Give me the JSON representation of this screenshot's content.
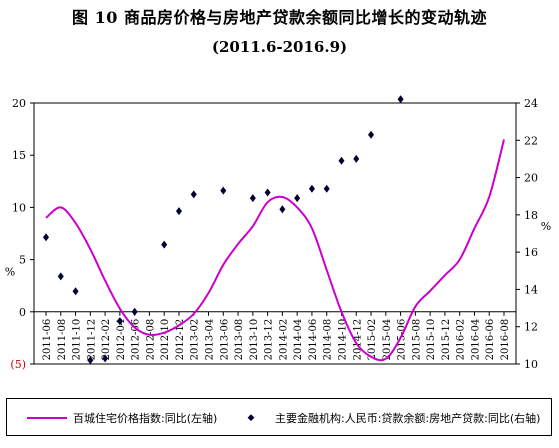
{
  "title": "图 10    商品房价格与房地产贷款余额同比增长的变动轨迹",
  "subtitle": "(2011.6-2016.9)",
  "chart_data": {
    "type": "line",
    "title": "图 10    商品房价格与房地产贷款余额同比增长的变动轨迹",
    "subtitle": "(2011.6-2016.9)",
    "categories": [
      "2011-06",
      "2011-08",
      "2011-10",
      "2011-12",
      "2012-02",
      "2012-04",
      "2012-06",
      "2012-08",
      "2012-10",
      "2012-12",
      "2013-02",
      "2013-04",
      "2013-06",
      "2013-08",
      "2013-10",
      "2013-12",
      "2014-02",
      "2014-04",
      "2014-06",
      "2014-08",
      "2014-10",
      "2014-12",
      "2015-02",
      "2015-04",
      "2015-06",
      "2015-08",
      "2015-10",
      "2015-12",
      "2016-02",
      "2016-04",
      "2016-06",
      "2016-08"
    ],
    "left_axis": {
      "label": "%",
      "ylim": [
        -5,
        20
      ],
      "ticks": [
        -5,
        0,
        5,
        10,
        15,
        20
      ],
      "tick_labels": [
        "(5)",
        "0",
        "5",
        "10",
        "15",
        "20"
      ]
    },
    "right_axis": {
      "label": "%",
      "ylim": [
        10,
        24
      ],
      "ticks": [
        10,
        12,
        14,
        16,
        18,
        20,
        22,
        24
      ],
      "tick_labels": [
        "10",
        "12",
        "14",
        "16",
        "18",
        "20",
        "22",
        "24"
      ]
    },
    "series": [
      {
        "name": "百城住宅价格指数:同比(左轴)",
        "type": "line",
        "axis": "left",
        "color": "#cc00cc",
        "values": [
          9.0,
          10.0,
          8.5,
          6.0,
          3.0,
          0.3,
          -1.5,
          -2.2,
          -2.0,
          -1.3,
          -0.2,
          1.8,
          4.5,
          6.5,
          8.2,
          10.5,
          11.0,
          10.0,
          8.0,
          4.0,
          0.0,
          -3.0,
          -4.3,
          -4.5,
          -2.5,
          0.5,
          2.0,
          3.5,
          5.0,
          8.0,
          11.0,
          16.5
        ]
      },
      {
        "name": "主要金融机构:人民币:贷款余额:房地产贷款:同比(右轴)",
        "type": "scatter",
        "axis": "right",
        "color": "#000033",
        "points": [
          {
            "x": "2011-06",
            "y": 16.8
          },
          {
            "x": "2011-08",
            "y": 14.7
          },
          {
            "x": "2011-10",
            "y": 13.9
          },
          {
            "x": "2011-12",
            "y": 10.2
          },
          {
            "x": "2012-02",
            "y": 10.3
          },
          {
            "x": "2012-04",
            "y": 12.3
          },
          {
            "x": "2012-06",
            "y": 12.8
          },
          {
            "x": "2012-10",
            "y": 16.4
          },
          {
            "x": "2012-12",
            "y": 18.2
          },
          {
            "x": "2013-02",
            "y": 19.1
          },
          {
            "x": "2013-06",
            "y": 19.3
          },
          {
            "x": "2013-10",
            "y": 18.9
          },
          {
            "x": "2013-12",
            "y": 19.2
          },
          {
            "x": "2014-02",
            "y": 18.3
          },
          {
            "x": "2014-04",
            "y": 18.9
          },
          {
            "x": "2014-06",
            "y": 19.4
          },
          {
            "x": "2014-08",
            "y": 19.4
          },
          {
            "x": "2014-10",
            "y": 20.9
          },
          {
            "x": "2014-12",
            "y": 21.0
          },
          {
            "x": "2015-02",
            "y": 22.3
          },
          {
            "x": "2015-06",
            "y": 24.2
          }
        ]
      }
    ],
    "legend": {
      "position": "bottom"
    },
    "grid": false
  }
}
